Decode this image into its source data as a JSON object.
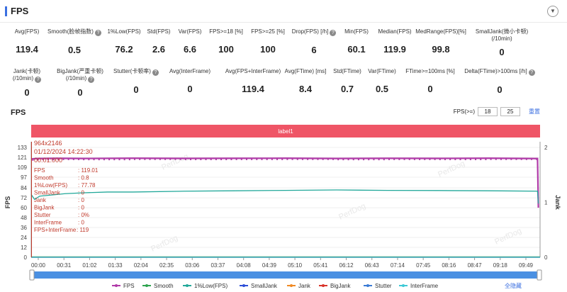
{
  "header": {
    "title": "FPS",
    "collapse_icon": "chevron-down-icon"
  },
  "stats_row1": [
    {
      "label": "Avg(FPS)",
      "value": "119.4",
      "help": false
    },
    {
      "label": "Smooth(脸帧指数)",
      "value": "0.5",
      "help": true
    },
    {
      "label": "1%Low(FPS)",
      "value": "76.2",
      "help": false
    },
    {
      "label": "Std(FPS)",
      "value": "2.6",
      "help": false
    },
    {
      "label": "Var(FPS)",
      "value": "6.6",
      "help": false
    },
    {
      "label": "FPS>=18 [%]",
      "value": "100",
      "help": false
    },
    {
      "label": "FPS>=25 [%]",
      "value": "100",
      "help": false
    },
    {
      "label": "Drop(FPS) [/h]",
      "value": "6",
      "help": true
    },
    {
      "label": "Min(FPS)",
      "value": "60.1",
      "help": false
    },
    {
      "label": "Median(FPS)",
      "value": "119.9",
      "help": false
    },
    {
      "label": "MedRange(FPS)[%]",
      "value": "99.8",
      "help": false
    },
    {
      "label": "SmallJank(微小卡顿)",
      "label2": "(/10min)",
      "value": "0",
      "help": false
    }
  ],
  "stats_row2": [
    {
      "label": "Jank(卡顿)",
      "label2": "(/10min)",
      "value": "0",
      "help": true
    },
    {
      "label": "BigJank(严重卡顿)",
      "label2": "(/10min)",
      "value": "0",
      "help": true
    },
    {
      "label": "Stutter(卡顿率)",
      "value": "0",
      "help": true
    },
    {
      "label": "Avg(InterFrame)",
      "value": "0",
      "help": false
    },
    {
      "label": "Avg(FPS+InterFrame)",
      "value": "119.4",
      "help": false
    },
    {
      "label": "Avg(FTime) [ms]",
      "value": "8.4",
      "help": false
    },
    {
      "label": "Std(FTime)",
      "value": "0.7",
      "help": false
    },
    {
      "label": "Var(FTime)",
      "value": "0.5",
      "help": false
    },
    {
      "label": "FTime>=100ms [%]",
      "value": "0",
      "help": false
    },
    {
      "label": "Delta(FTime)>100ms [/h]",
      "value": "0",
      "help": true
    }
  ],
  "chart_section": {
    "title": "FPS",
    "thresh_label": "FPS(>=)",
    "thresh1": "18",
    "thresh2": "25",
    "reset_label": "重置",
    "band_label": "label1",
    "watermark": "PerfDog",
    "toggle_all": "全隐藏"
  },
  "tooltip": {
    "resolution": "964x2146",
    "datetime": "01/12/2024 14:22:30",
    "time": "00:01:000",
    "rows": [
      {
        "k": "FPS",
        "v": ": 119.01"
      },
      {
        "k": "Smooth",
        "v": ": 0.8"
      },
      {
        "k": "1%Low(FPS)",
        "v": ": 77.78"
      },
      {
        "k": "SmallJank",
        "v": ": 0"
      },
      {
        "k": "Jank",
        "v": ": 0"
      },
      {
        "k": "BigJank",
        "v": ": 0"
      },
      {
        "k": "Stutter",
        "v": ": 0%"
      },
      {
        "k": "InterFrame",
        "v": ": 0"
      },
      {
        "k": "FPS+InterFrame",
        "v": ": 119"
      }
    ]
  },
  "chart_data": {
    "type": "line",
    "ylabel": "FPS",
    "y2label": "Jank",
    "ylim": [
      0,
      133
    ],
    "yticks": [
      0,
      12,
      24,
      36,
      48,
      60,
      72,
      84,
      97,
      109,
      121,
      133
    ],
    "y2lim": [
      0,
      2
    ],
    "y2ticks": [
      0,
      1,
      2
    ],
    "x_ticks": [
      "00:00",
      "00:31",
      "01:02",
      "01:33",
      "02:04",
      "02:35",
      "03:06",
      "03:37",
      "04:08",
      "04:39",
      "05:10",
      "05:41",
      "06:12",
      "06:43",
      "07:14",
      "07:45",
      "08:16",
      "08:47",
      "09:18",
      "09:49"
    ],
    "x_range_sec": [
      0,
      600
    ],
    "legend_position": "bottom",
    "series": [
      {
        "name": "FPS",
        "color": "#b03aa8",
        "x": [
          0,
          6,
          30,
          60,
          120,
          180,
          240,
          300,
          360,
          420,
          480,
          540,
          597,
          598
        ],
        "values": [
          119,
          119.5,
          119.8,
          119.6,
          119.9,
          119.7,
          119.8,
          119.9,
          119.6,
          119.8,
          119.7,
          119.9,
          119.5,
          60
        ]
      },
      {
        "name": "Smooth",
        "color": "#2ea44f",
        "x": [
          0,
          600
        ],
        "values": [
          0.5,
          0.5
        ]
      },
      {
        "name": "1%Low(FPS)",
        "color": "#22a89a",
        "x": [
          0,
          4,
          10,
          20,
          40,
          60,
          90,
          120,
          180,
          240,
          300,
          360,
          420,
          480,
          540,
          597,
          598
        ],
        "values": [
          76,
          70,
          74,
          75,
          77,
          78,
          79,
          79,
          80,
          80.5,
          81,
          81.5,
          81,
          80.8,
          80.5,
          80,
          65
        ]
      },
      {
        "name": "SmallJank",
        "color": "#2d4fd8",
        "x": [
          0,
          600
        ],
        "values": [
          0,
          0
        ]
      },
      {
        "name": "Jank",
        "color": "#f08a24",
        "x": [
          0,
          600
        ],
        "values": [
          0,
          0
        ]
      },
      {
        "name": "BigJank",
        "color": "#d9342b",
        "x": [
          0,
          600
        ],
        "values": [
          0,
          0
        ]
      },
      {
        "name": "Stutter",
        "color": "#3a7bd5",
        "x": [
          0,
          600
        ],
        "values": [
          0,
          0
        ]
      },
      {
        "name": "InterFrame",
        "color": "#3ec9d6",
        "x": [
          0,
          600
        ],
        "values": [
          0,
          0
        ]
      }
    ]
  }
}
